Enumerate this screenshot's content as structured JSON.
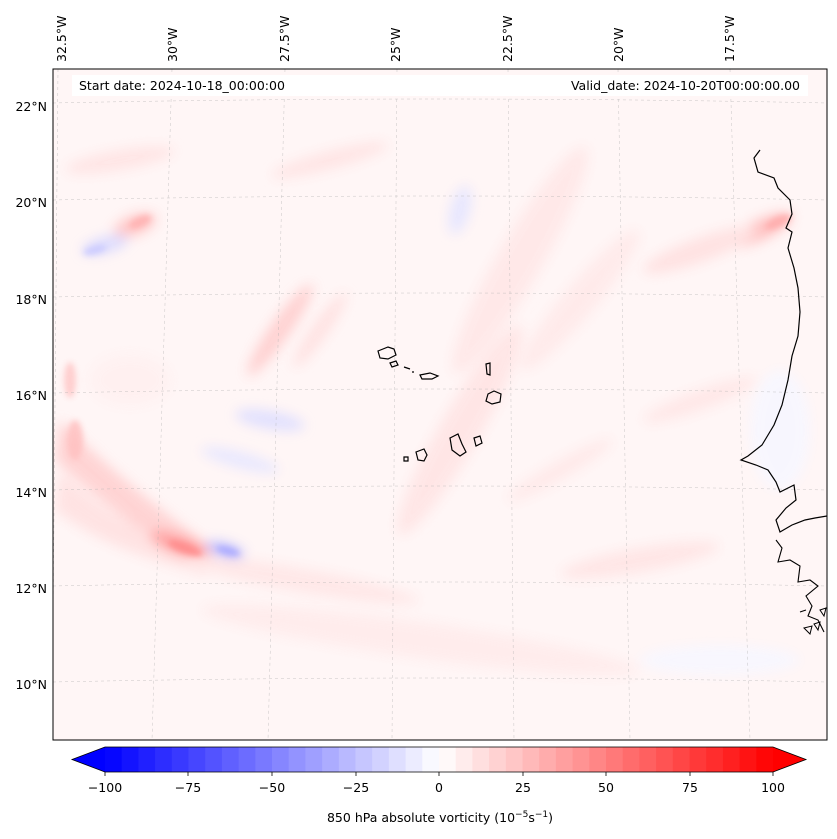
{
  "map": {
    "start_date": "Start date: 2024-10-18_00:00:00",
    "valid_date": "Valid_date: 2024-10-20T00:00:00.00",
    "lon_labels": [
      "32.5°W",
      "30°W",
      "27.5°W",
      "25°W",
      "22.5°W",
      "20°W",
      "17.5°W"
    ],
    "lat_labels": [
      "22°N",
      "20°N",
      "18°N",
      "16°N",
      "14°N",
      "12°N",
      "10°N"
    ],
    "gridlines": true,
    "colormap": "bwr",
    "colors": {
      "negative": "#0000ff",
      "zero": "#ffffff",
      "positive": "#ff0000"
    }
  },
  "colorbar": {
    "ticks": [
      "−100",
      "−75",
      "−50",
      "−25",
      "0",
      "25",
      "50",
      "75",
      "100"
    ],
    "label_prefix": "850 hPa absolute vorticity (10",
    "label_exp1": "−5",
    "label_mid": "s",
    "label_exp2": "−1",
    "label_suffix": ")",
    "vmin": -100,
    "vmax": 100,
    "levels": 40,
    "extend": "both"
  }
}
